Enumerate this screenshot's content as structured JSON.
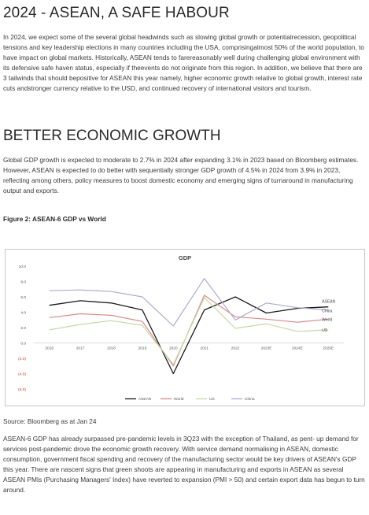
{
  "heading1": "2024 - ASEAN, A SAFE HABOUR",
  "intro": "In 2024, we expect some of the several global headwinds such as slowing global growth or potentialrecession, geopolitical tensions and key leadership elections in many countries including the USA, comprisingalmost 50% of the world population, to have impact on global markets. Historically, ASEAN tends to farereasonably well during challenging global environment with its defensive safe haven status, especially if theevents do not originate from this region. In addition, we believe that there are 3 tailwinds that should bepositive for ASEAN this year namely, higher economic growth relative to global growth, interest rate cuts andstronger currency relative to the USD, and continued recovery of international visitors and tourism.",
  "heading2": "BETTER ECONOMIC GROWTH",
  "growth_para": "Global GDP growth is expected to moderate to 2.7% in 2024 after expanding 3.1% in 2023 based on Bloomberg estimates. However, ASEAN is expected to do better with sequentially stronger GDP growth of 4.5% in 2024 from 3.9% in 2023, reflecting among others, policy measures to boost domestic economy and emerging signs of turnaround in manufacturing output and exports.",
  "figure_caption": "Figure 2: ASEAN-6 GDP vs World",
  "source": "Source: Bloomberg as at Jan 24",
  "closing_para": "ASEAN-6 GDP has already surpassed pre-pandemic levels in 3Q23 with the exception of Thailand, as pent- up demand for services post-pandemic drove the economic growth recovery. With service demand normalising in ASEAN, domestic consumption, government fiscal spending and recovery of the manufacturing sector would be key drivers of ASEAN's GDP this year. There are nascent signs that green shoots are appearing in manufacturing and exports in ASEAN as several ASEAN PMIs (Purchasing Managers' Index) have reverted to expansion (PMI > 50) and certain export data has begun to turn around.",
  "chart_data": {
    "type": "line",
    "title": "GDP",
    "xlabel": "",
    "ylabel": "",
    "categories": [
      "2016",
      "2017",
      "2018",
      "2019",
      "2020",
      "2021",
      "2022",
      "2023E",
      "2024E",
      "2025E"
    ],
    "ylim": [
      -6,
      10
    ],
    "yticks": [
      "10.0",
      "8.0",
      "6.0",
      "4.0",
      "2.0",
      "0.0",
      "(2.0)",
      "(4.0)",
      "(6.0)"
    ],
    "grid": false,
    "legend": "bottom",
    "series": [
      {
        "name": "ASEAN",
        "color": "#1a1a1a",
        "values": [
          4.9,
          5.5,
          5.2,
          4.3,
          -4.0,
          4.3,
          6.0,
          3.9,
          4.5,
          4.7
        ]
      },
      {
        "name": "World",
        "color": "#d98a8a",
        "values": [
          3.3,
          3.8,
          3.6,
          2.8,
          -3.0,
          6.2,
          3.4,
          3.1,
          2.7,
          3.1
        ]
      },
      {
        "name": "US",
        "color": "#c6d9a4",
        "values": [
          1.7,
          2.4,
          2.9,
          2.3,
          -2.8,
          5.9,
          1.9,
          2.5,
          1.5,
          1.7
        ]
      },
      {
        "name": "China",
        "color": "#b3a9cc",
        "values": [
          6.8,
          6.9,
          6.7,
          6.0,
          2.2,
          8.4,
          3.0,
          5.2,
          4.6,
          4.3
        ]
      }
    ],
    "end_labels": [
      "ASEAN",
      "China",
      "World",
      "US"
    ]
  }
}
